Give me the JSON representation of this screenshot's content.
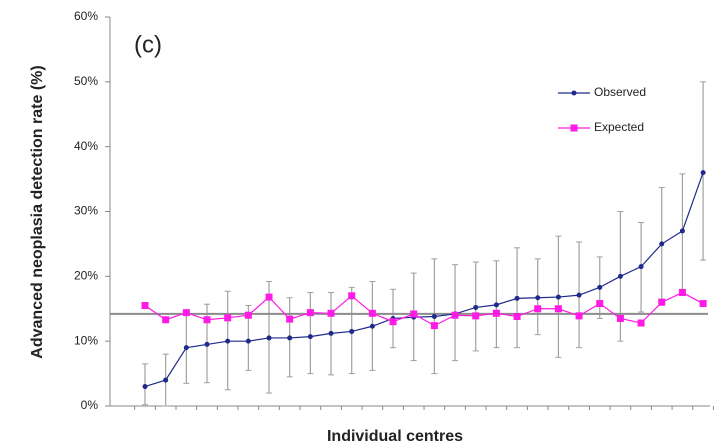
{
  "chart_data": {
    "type": "line",
    "annotation": "(c)",
    "y_label": "Advanced neoplasia detection rate (%)",
    "x_label": "Individual centres",
    "ylim": [
      0,
      60
    ],
    "yticks": [
      {
        "value": 0,
        "label": "0%"
      },
      {
        "value": 10,
        "label": "10%"
      },
      {
        "value": 20,
        "label": "20%"
      },
      {
        "value": 30,
        "label": "30%"
      },
      {
        "value": 40,
        "label": "40%"
      },
      {
        "value": 50,
        "label": "50%"
      },
      {
        "value": 60,
        "label": "60%"
      }
    ],
    "reference_line": 14.2,
    "reference_color": "#8c8c8c",
    "error_color": "#a0a0a0",
    "legend": "upper right",
    "series": [
      {
        "name": "Observed",
        "color": "#1f2a8a",
        "marker": "circle",
        "values": [
          3,
          4,
          9,
          9.5,
          10,
          10,
          10.5,
          10.5,
          10.7,
          11.2,
          11.5,
          12.3,
          13.5,
          13.7,
          13.8,
          14.2,
          15.2,
          15.6,
          16.6,
          16.7,
          16.8,
          17.1,
          18.3,
          20,
          21.5,
          25,
          27,
          36
        ],
        "ci_low": [
          0.2,
          0,
          3.5,
          3.6,
          2.5,
          5.5,
          2,
          4.5,
          5,
          4.8,
          5,
          5.5,
          9,
          7,
          5,
          7,
          8.5,
          9,
          9,
          11,
          7.5,
          9,
          13.5,
          10,
          14.5,
          16.5,
          18,
          22.5
        ],
        "ci_high": [
          6.5,
          8,
          14.5,
          15.7,
          17.7,
          15.5,
          19.2,
          16.7,
          17.5,
          17.5,
          18.3,
          19.2,
          18,
          20.5,
          22.7,
          21.8,
          22.2,
          22.4,
          24.4,
          22.7,
          26.2,
          25.3,
          23,
          30,
          28.3,
          33.7,
          35.8,
          50
        ]
      },
      {
        "name": "Expected",
        "color": "#ff1ae6",
        "marker": "square",
        "values": [
          15.5,
          13.3,
          14.4,
          13.3,
          13.6,
          14,
          16.8,
          13.4,
          14.4,
          14.3,
          17,
          14.3,
          13,
          14.2,
          12.4,
          14,
          13.9,
          14.3,
          13.8,
          15,
          15,
          13.9,
          15.8,
          13.5,
          12.8,
          16,
          17.5,
          15.8
        ]
      }
    ]
  }
}
